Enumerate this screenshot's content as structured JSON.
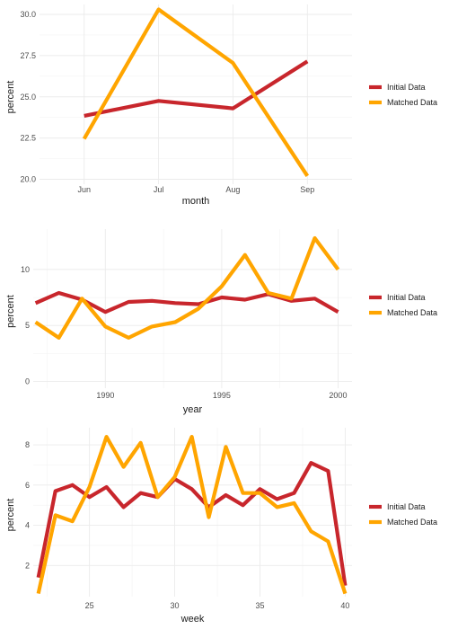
{
  "colors": {
    "initial": "#c8262c",
    "matched": "#ffa500"
  },
  "chart_data": [
    {
      "type": "line",
      "xlabel": "month",
      "ylabel": "percent",
      "categories": [
        "Jun",
        "Jul",
        "Aug",
        "Sep"
      ],
      "x_tick_labels": [
        "Jun",
        "Jul",
        "Aug",
        "Sep"
      ],
      "y_ticks": [
        20.0,
        22.5,
        25.0,
        27.5,
        30.0
      ],
      "y_tick_labels": [
        "20.0",
        "22.5",
        "25.0",
        "27.5",
        "30.0"
      ],
      "ylim": [
        19.7,
        30.6
      ],
      "grid": true,
      "legend_position": "right",
      "series": [
        {
          "name": "Initial Data",
          "values": [
            23.85,
            24.75,
            24.3,
            27.15
          ]
        },
        {
          "name": "Matched Data",
          "values": [
            22.45,
            30.3,
            27.05,
            20.2
          ]
        }
      ]
    },
    {
      "type": "line",
      "xlabel": "year",
      "ylabel": "percent",
      "x": [
        1987,
        1988,
        1989,
        1990,
        1991,
        1992,
        1993,
        1994,
        1995,
        1996,
        1997,
        1998,
        1999,
        2000
      ],
      "x_ticks": [
        1990,
        1995,
        2000
      ],
      "x_tick_labels": [
        "1990",
        "1995",
        "2000"
      ],
      "xlim": [
        1986.9,
        2000.6
      ],
      "y_ticks": [
        0,
        5,
        10
      ],
      "y_tick_labels": [
        "0",
        "5",
        "10"
      ],
      "ylim": [
        -0.6,
        13.6
      ],
      "grid": true,
      "legend_position": "right",
      "series": [
        {
          "name": "Initial Data",
          "values": [
            7.0,
            7.9,
            7.3,
            6.2,
            7.1,
            7.2,
            7.0,
            6.9,
            7.5,
            7.3,
            7.8,
            7.2,
            7.4,
            6.2
          ]
        },
        {
          "name": "Matched Data",
          "values": [
            5.3,
            3.9,
            7.4,
            4.9,
            3.9,
            4.9,
            5.3,
            6.5,
            8.5,
            11.3,
            7.9,
            7.4,
            12.8,
            10.0
          ]
        }
      ]
    },
    {
      "type": "line",
      "xlabel": "week",
      "ylabel": "percent",
      "x": [
        22,
        23,
        24,
        25,
        26,
        27,
        28,
        29,
        30,
        31,
        32,
        33,
        34,
        35,
        36,
        37,
        38,
        39,
        40
      ],
      "x_ticks": [
        25,
        30,
        35,
        40
      ],
      "x_tick_labels": [
        "25",
        "30",
        "35",
        "40"
      ],
      "xlim": [
        21.7,
        40.4
      ],
      "y_ticks": [
        2,
        4,
        6,
        8
      ],
      "y_tick_labels": [
        "2",
        "4",
        "6",
        "8"
      ],
      "ylim": [
        0.45,
        8.85
      ],
      "grid": true,
      "legend_position": "right",
      "series": [
        {
          "name": "Initial Data",
          "values": [
            1.4,
            5.7,
            6.0,
            5.4,
            5.9,
            4.9,
            5.6,
            5.4,
            6.3,
            5.8,
            4.9,
            5.5,
            5.0,
            5.8,
            5.3,
            5.6,
            7.1,
            6.7,
            1.0
          ]
        },
        {
          "name": "Matched Data",
          "values": [
            0.6,
            4.5,
            4.2,
            5.9,
            8.4,
            6.9,
            8.1,
            5.4,
            6.4,
            8.4,
            4.4,
            7.9,
            5.6,
            5.6,
            4.9,
            5.1,
            3.7,
            3.2,
            0.6
          ]
        }
      ]
    }
  ]
}
